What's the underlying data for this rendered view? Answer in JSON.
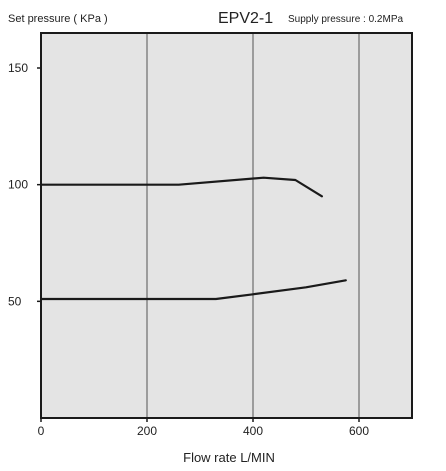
{
  "chart_data": {
    "type": "line",
    "title": "EPV2-1",
    "subtitle": "Supply pressure : 0.2MPa",
    "ylabel": "Set pressure ( KPa )",
    "xlabel": "Flow rate L/MIN",
    "xlim": [
      0,
      700
    ],
    "ylim": [
      0,
      165
    ],
    "x_ticks": [
      0,
      200,
      400,
      600
    ],
    "x_tick_labels": [
      "0",
      "200",
      "400",
      "600"
    ],
    "y_ticks": [
      50,
      100,
      150
    ],
    "y_tick_labels": [
      "50",
      "100",
      "150"
    ],
    "grid": "vertical",
    "colors": {
      "plot_bg": "#e4e4e4",
      "line": "#1a1a1a",
      "grid": "#555555"
    },
    "series": [
      {
        "points": [
          [
            0,
            100
          ],
          [
            260,
            100
          ],
          [
            420,
            103
          ],
          [
            480,
            102
          ],
          [
            530,
            95
          ]
        ]
      },
      {
        "points": [
          [
            0,
            51
          ],
          [
            330,
            51
          ],
          [
            400,
            53
          ],
          [
            500,
            56
          ],
          [
            575,
            59
          ]
        ]
      }
    ]
  }
}
